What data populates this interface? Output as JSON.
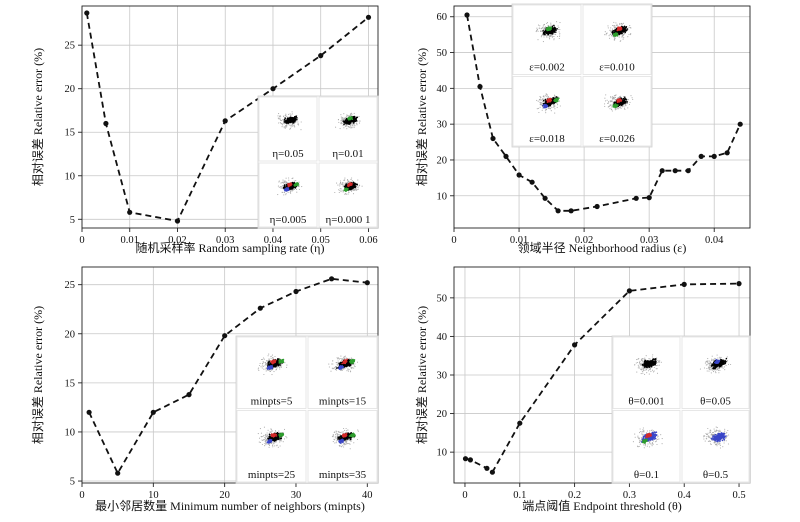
{
  "chart_data": [
    {
      "type": "line",
      "xlabel": "随机采样率 Random sampling rate (η)",
      "ylabel": "相对误差 Relative error (%)",
      "xlim": [
        0,
        0.062
      ],
      "ylim": [
        4,
        29.5
      ],
      "xticks": [
        "0",
        "0.01",
        "0.02",
        "0.03",
        "0.04",
        "0.05",
        "0.06"
      ],
      "xtick_values": [
        0,
        0.01,
        0.02,
        0.03,
        0.04,
        0.05,
        0.06
      ],
      "yticks": [
        "5",
        "10",
        "15",
        "20",
        "25"
      ],
      "ytick_values": [
        5,
        10,
        15,
        20,
        25
      ],
      "series": [
        {
          "x": [
            0.001,
            0.005,
            0.01,
            0.02,
            0.03,
            0.04,
            0.05,
            0.06
          ],
          "y": [
            28.7,
            16.0,
            5.8,
            4.8,
            16.3,
            20.0,
            23.8,
            28.2
          ]
        }
      ],
      "insets": {
        "labels": [
          "η=0.05",
          "η=0.01",
          "η=0.005",
          "η=0.000 1"
        ],
        "images": [
          {
            "content": "point-cloud",
            "colors": [
              "#000000"
            ]
          },
          {
            "content": "point-cloud",
            "colors": [
              "#000000",
              "#2e9e2e"
            ]
          },
          {
            "content": "point-cloud",
            "colors": [
              "#000000",
              "#d42a2a",
              "#3a46c8",
              "#2e9e2e"
            ]
          },
          {
            "content": "point-cloud",
            "colors": [
              "#000000",
              "#d42a2a",
              "#2e9e2e"
            ]
          }
        ]
      }
    },
    {
      "type": "line",
      "xlabel": "领域半径 Neighborhood radius (ε)",
      "ylabel": "相对误差 Relative error (%)",
      "xlim": [
        0,
        0.0455
      ],
      "ylim": [
        1,
        63
      ],
      "xticks": [
        "0",
        "0.01",
        "0.02",
        "0.03",
        "0.04"
      ],
      "xtick_values": [
        0,
        0.01,
        0.02,
        0.03,
        0.04
      ],
      "yticks": [
        "10",
        "20",
        "30",
        "40",
        "50",
        "60"
      ],
      "ytick_values": [
        10,
        20,
        30,
        40,
        50,
        60
      ],
      "series": [
        {
          "x": [
            0.002,
            0.004,
            0.006,
            0.008,
            0.01,
            0.012,
            0.014,
            0.016,
            0.018,
            0.022,
            0.028,
            0.03,
            0.032,
            0.034,
            0.036,
            0.038,
            0.04,
            0.042,
            0.044
          ],
          "y": [
            60.5,
            40.5,
            26.0,
            21.0,
            15.8,
            13.8,
            9.3,
            5.8,
            5.8,
            7.0,
            9.3,
            9.5,
            17.0,
            17.0,
            17.0,
            21.0,
            21.0,
            22.0,
            30.0
          ]
        }
      ],
      "insets": {
        "labels": [
          "ε=0.002",
          "ε=0.010",
          "ε=0.018",
          "ε=0.026"
        ],
        "images": [
          {
            "content": "point-cloud",
            "colors": [
              "#000000",
              "#2e9e2e"
            ]
          },
          {
            "content": "point-cloud",
            "colors": [
              "#000000",
              "#d42a2a",
              "#2e9e2e"
            ]
          },
          {
            "content": "point-cloud",
            "colors": [
              "#000000",
              "#d42a2a",
              "#3a46c8",
              "#2e9e2e"
            ]
          },
          {
            "content": "point-cloud",
            "colors": [
              "#000000",
              "#d42a2a",
              "#2e9e2e"
            ]
          }
        ]
      }
    },
    {
      "type": "line",
      "xlabel": "最小邻居数量 Minimum number of neighbors (minpts)",
      "ylabel": "相对误差 Relative error (%)",
      "xlim": [
        0,
        41.5
      ],
      "ylim": [
        4.8,
        26.8
      ],
      "xticks": [
        "0",
        "10",
        "20",
        "30",
        "40"
      ],
      "xtick_values": [
        0,
        10,
        20,
        30,
        40
      ],
      "yticks": [
        "5",
        "10",
        "15",
        "20",
        "25"
      ],
      "ytick_values": [
        5,
        10,
        15,
        20,
        25
      ],
      "series": [
        {
          "x": [
            1,
            5,
            10,
            15,
            20,
            25,
            30,
            35,
            40
          ],
          "y": [
            12.0,
            5.8,
            12.0,
            13.8,
            19.8,
            22.6,
            24.3,
            25.6,
            25.2
          ]
        }
      ],
      "insets": {
        "labels": [
          "minpts=5",
          "minpts=15",
          "minpts=25",
          "minpts=35"
        ],
        "images": [
          {
            "content": "point-cloud",
            "colors": [
              "#000000",
              "#d42a2a",
              "#3a46c8",
              "#2e9e2e"
            ]
          },
          {
            "content": "point-cloud",
            "colors": [
              "#000000",
              "#d42a2a",
              "#3a46c8",
              "#2e9e2e"
            ]
          },
          {
            "content": "point-cloud",
            "colors": [
              "#000000",
              "#d42a2a",
              "#3a46c8",
              "#2e9e2e"
            ]
          },
          {
            "content": "point-cloud",
            "colors": [
              "#000000",
              "#d42a2a",
              "#3a46c8",
              "#2e9e2e"
            ]
          }
        ]
      }
    },
    {
      "type": "line",
      "xlabel": "端点阈值 Endpoint threshold (θ)",
      "ylabel": "相对误差 Relative error (%)",
      "xlim": [
        -0.02,
        0.52
      ],
      "ylim": [
        2,
        58
      ],
      "xticks": [
        "0",
        "0.1",
        "0.2",
        "0.3",
        "0.4",
        "0.5"
      ],
      "xtick_values": [
        0,
        0.1,
        0.2,
        0.3,
        0.4,
        0.5
      ],
      "yticks": [
        "10",
        "20",
        "30",
        "40",
        "50"
      ],
      "ytick_values": [
        10,
        20,
        30,
        40,
        50
      ],
      "series": [
        {
          "x": [
            0.001,
            0.01,
            0.04,
            0.05,
            0.1,
            0.2,
            0.3,
            0.4,
            0.5
          ],
          "y": [
            8.3,
            8.0,
            5.8,
            4.8,
            17.5,
            37.8,
            51.8,
            53.5,
            53.7
          ]
        }
      ],
      "insets": {
        "labels": [
          "θ=0.001",
          "θ=0.05",
          "θ=0.1",
          "θ=0.5"
        ],
        "images": [
          {
            "content": "point-cloud",
            "colors": [
              "#000000"
            ]
          },
          {
            "content": "point-cloud",
            "colors": [
              "#000000",
              "#3a46c8"
            ]
          },
          {
            "content": "point-cloud",
            "colors": [
              "#3a46c8",
              "#d42a2a",
              "#2e9e2e"
            ]
          },
          {
            "content": "point-cloud",
            "colors": [
              "#3a46c8"
            ]
          }
        ]
      }
    }
  ]
}
